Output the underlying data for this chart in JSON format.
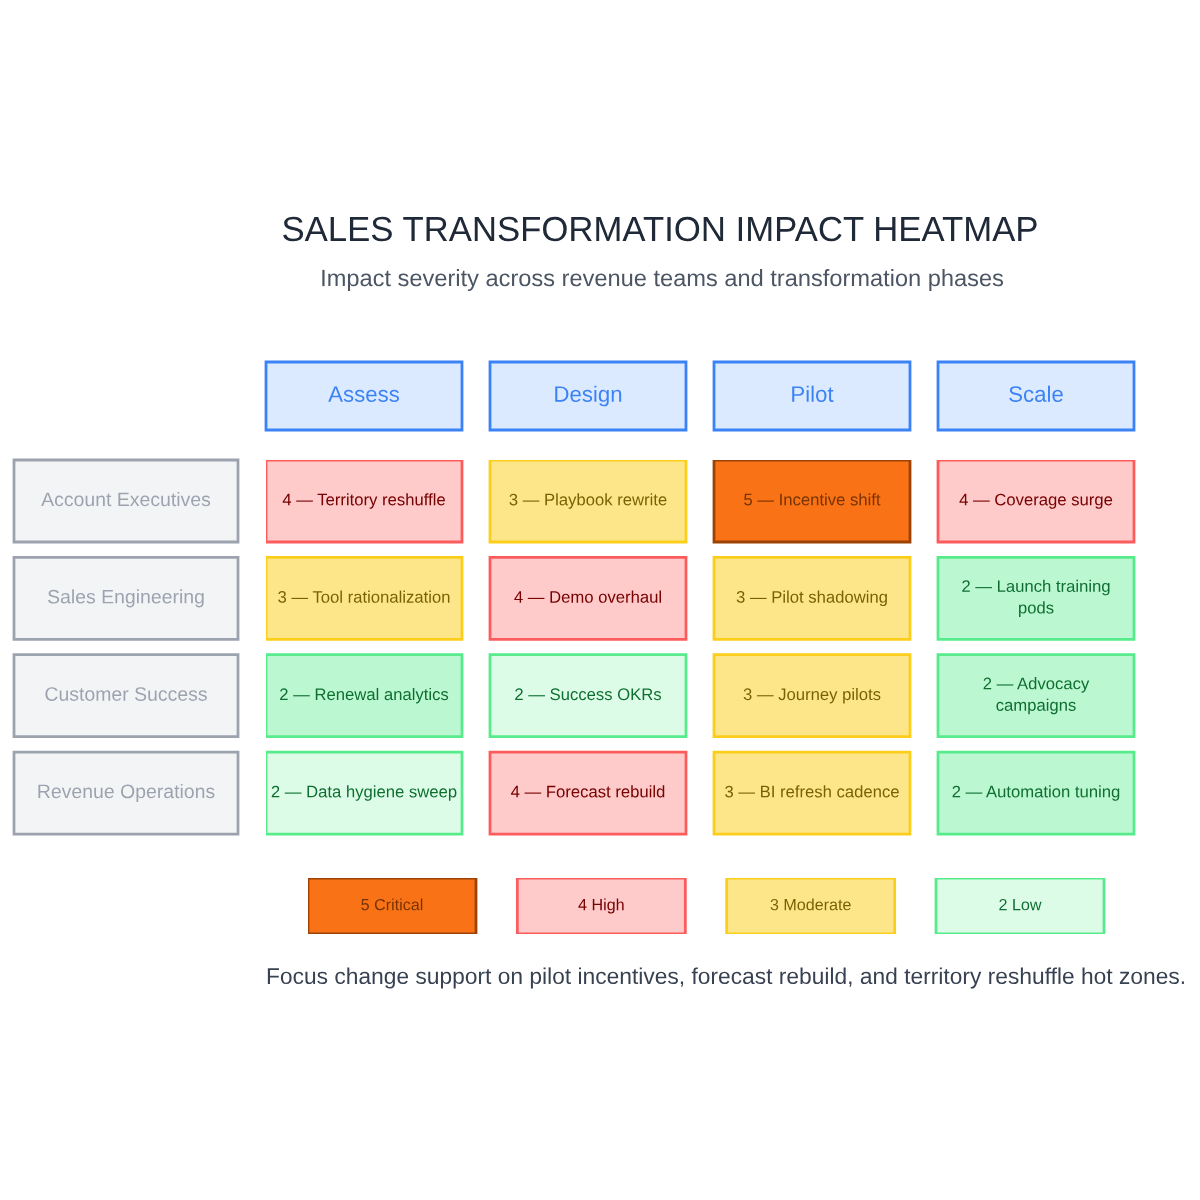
{
  "chart_data": [
    {
      "type": "heatmap",
      "title": "SALES TRANSFORMATION IMPACT HEATMAP",
      "subtitle": "Impact severity across revenue teams and transformation phases",
      "categories": [
        "Assess",
        "Design",
        "Pilot",
        "Scale"
      ],
      "y_categories": [
        "Account Executives",
        "Sales Engineering",
        "Customer Success",
        "Revenue Operations"
      ],
      "cells": [
        [
          4,
          3,
          5,
          4
        ],
        [
          3,
          4,
          3,
          2
        ],
        [
          2,
          2,
          3,
          2
        ],
        [
          2,
          4,
          3,
          2
        ]
      ],
      "cell_labels": [
        [
          "4 — Territory reshuffle",
          "3 — Playbook rewrite",
          "5 — Incentive shift",
          "4 — Coverage surge"
        ],
        [
          "3 — Tool rationalization",
          "4 — Demo overhaul",
          "3 — Pilot shadowing",
          "2 — Launch training pods"
        ],
        [
          "2 — Renewal analytics",
          "2 — Success OKRs",
          "3 — Journey pilots",
          "2 — Advocacy campaigns"
        ],
        [
          "2 — Data hygiene sweep",
          "4 — Forecast rebuild",
          "3 — BI refresh cadence",
          "2 — Automation tuning"
        ]
      ],
      "colors": [
        [
          "#fecaca",
          "#fde68a",
          "#f97316",
          "#fecaca"
        ],
        [
          "#fde68a",
          "#fecaca",
          "#fde68a",
          "#bbf7d0"
        ],
        [
          "#bbf7d0",
          "#dcfce7",
          "#fde68a",
          "#bbf7d0"
        ],
        [
          "#dcfce7",
          "#fecaca",
          "#fde68a",
          "#bbf7d0"
        ]
      ],
      "annotations": [
        "Focus change support on pilot incentives, forecast rebuild, and territory reshuffle hot zones."
      ]
    },
    {
      "type": "heatmap",
      "categories": [
        null,
        null,
        null,
        null
      ],
      "y_categories": [
        null
      ],
      "cells": [
        [
          5,
          4,
          3,
          2
        ]
      ],
      "cell_labels": [
        [
          "5 Critical",
          "4 High",
          "3 Moderate",
          "2 Low"
        ]
      ],
      "colors": [
        [
          "#f97316",
          "#fecaca",
          "#fde68a",
          "#dcfce7"
        ]
      ]
    }
  ]
}
